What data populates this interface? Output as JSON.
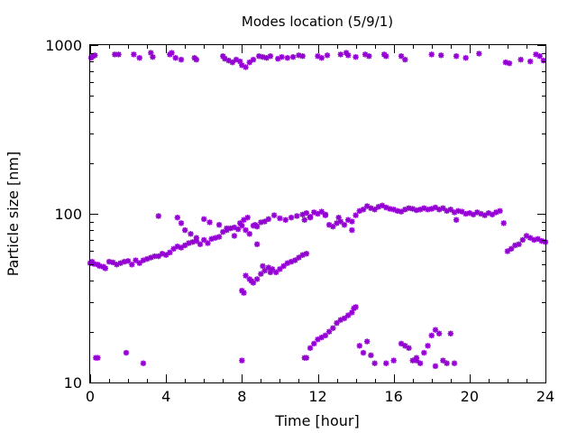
{
  "chart_data": {
    "type": "scatter",
    "title": "Modes location (5/9/1)",
    "xlabel": "Time [hour]",
    "ylabel": "Particle size [nm]",
    "xlim": [
      0,
      24
    ],
    "ylim": [
      10,
      1000
    ],
    "yscale": "log",
    "xticks": [
      0,
      4,
      8,
      12,
      16,
      20,
      24
    ],
    "xtick_labels": [
      "0",
      "4",
      "8",
      "12",
      "16",
      "20",
      "24"
    ],
    "xtick_minor_step": 1,
    "yticks": [
      10,
      100,
      1000
    ],
    "ytick_labels": [
      "10",
      "100",
      "1000"
    ],
    "grid": false,
    "legend": "none",
    "marker": "star",
    "color": "#9400d3",
    "series": [
      {
        "values": [
          [
            0.05,
            840
          ],
          [
            0.15,
            860
          ],
          [
            0.25,
            870
          ],
          [
            1.3,
            880
          ],
          [
            1.5,
            880
          ],
          [
            2.3,
            880
          ],
          [
            2.6,
            840
          ],
          [
            3.2,
            900
          ],
          [
            3.3,
            850
          ],
          [
            4.2,
            880
          ],
          [
            4.3,
            900
          ],
          [
            4.5,
            840
          ],
          [
            4.8,
            820
          ],
          [
            5.5,
            840
          ],
          [
            5.6,
            820
          ],
          [
            7.0,
            860
          ],
          [
            7.1,
            830
          ],
          [
            7.3,
            810
          ],
          [
            7.5,
            790
          ],
          [
            7.7,
            820
          ],
          [
            7.9,
            800
          ],
          [
            8.0,
            760
          ],
          [
            8.2,
            740
          ],
          [
            8.4,
            790
          ],
          [
            8.6,
            820
          ],
          [
            8.9,
            860
          ],
          [
            9.1,
            850
          ],
          [
            9.3,
            840
          ],
          [
            9.5,
            860
          ],
          [
            9.9,
            830
          ],
          [
            10.1,
            850
          ],
          [
            10.4,
            840
          ],
          [
            10.7,
            850
          ],
          [
            11.0,
            870
          ],
          [
            11.2,
            860
          ],
          [
            12.0,
            860
          ],
          [
            12.2,
            840
          ],
          [
            12.5,
            870
          ],
          [
            13.2,
            880
          ],
          [
            13.5,
            900
          ],
          [
            13.6,
            870
          ],
          [
            14.0,
            850
          ],
          [
            14.5,
            880
          ],
          [
            14.7,
            860
          ],
          [
            15.5,
            880
          ],
          [
            15.6,
            860
          ],
          [
            16.4,
            860
          ],
          [
            16.6,
            820
          ],
          [
            18.0,
            880
          ],
          [
            18.5,
            870
          ],
          [
            19.3,
            860
          ],
          [
            19.8,
            840
          ],
          [
            20.5,
            890
          ],
          [
            21.9,
            790
          ],
          [
            22.1,
            780
          ],
          [
            22.7,
            820
          ],
          [
            23.2,
            800
          ],
          [
            23.5,
            880
          ],
          [
            23.7,
            860
          ],
          [
            23.9,
            810
          ]
        ]
      },
      {
        "values": [
          [
            0.0,
            51
          ],
          [
            0.1,
            52
          ],
          [
            0.2,
            50.5
          ],
          [
            0.4,
            50
          ],
          [
            0.5,
            49
          ],
          [
            0.7,
            48.5
          ],
          [
            0.8,
            47.5
          ],
          [
            1.0,
            52
          ],
          [
            1.2,
            51.5
          ],
          [
            1.4,
            50
          ],
          [
            1.6,
            51
          ],
          [
            1.8,
            52
          ],
          [
            2.0,
            52.5
          ],
          [
            2.2,
            50
          ],
          [
            2.4,
            53
          ],
          [
            2.6,
            51
          ],
          [
            2.8,
            53
          ],
          [
            3.0,
            54
          ],
          [
            3.2,
            55
          ],
          [
            3.4,
            56
          ],
          [
            3.6,
            56
          ],
          [
            3.8,
            58
          ],
          [
            4.0,
            57
          ],
          [
            4.2,
            59
          ],
          [
            4.4,
            62
          ],
          [
            4.6,
            64
          ],
          [
            4.8,
            63
          ],
          [
            5.0,
            65
          ],
          [
            5.2,
            67
          ],
          [
            5.4,
            68
          ],
          [
            5.6,
            69
          ],
          [
            5.8,
            66
          ],
          [
            6.0,
            70
          ],
          [
            6.2,
            67
          ],
          [
            6.4,
            71
          ],
          [
            6.6,
            72
          ],
          [
            6.8,
            73
          ],
          [
            7.0,
            78
          ],
          [
            7.2,
            80
          ],
          [
            7.4,
            82
          ],
          [
            7.6,
            83
          ],
          [
            7.8,
            81
          ],
          [
            8.0,
            85
          ],
          [
            8.2,
            80
          ],
          [
            8.4,
            76
          ],
          [
            8.6,
            85
          ],
          [
            8.8,
            84
          ],
          [
            9.0,
            89
          ],
          [
            9.2,
            90
          ],
          [
            9.4,
            93
          ],
          [
            9.7,
            98
          ],
          [
            10.0,
            94
          ],
          [
            10.3,
            92
          ],
          [
            10.6,
            95
          ],
          [
            10.9,
            97
          ],
          [
            11.2,
            99
          ],
          [
            11.4,
            101
          ],
          [
            11.6,
            96
          ],
          [
            11.8,
            102
          ],
          [
            12.0,
            100
          ],
          [
            12.2,
            103
          ],
          [
            12.4,
            98
          ],
          [
            12.6,
            86
          ],
          [
            12.8,
            84
          ],
          [
            13.0,
            88
          ],
          [
            13.2,
            90
          ],
          [
            13.4,
            86
          ],
          [
            13.6,
            92
          ],
          [
            13.8,
            90
          ],
          [
            14.0,
            98
          ],
          [
            14.2,
            104
          ],
          [
            14.4,
            106
          ],
          [
            14.6,
            111
          ],
          [
            14.8,
            108
          ],
          [
            15.0,
            106
          ],
          [
            15.2,
            110
          ],
          [
            15.4,
            112
          ],
          [
            15.6,
            109
          ],
          [
            15.8,
            107
          ],
          [
            16.0,
            106
          ],
          [
            16.2,
            104
          ],
          [
            16.4,
            103
          ],
          [
            16.6,
            106
          ],
          [
            16.8,
            108
          ],
          [
            17.0,
            107
          ],
          [
            17.2,
            105
          ],
          [
            17.4,
            106
          ],
          [
            17.6,
            108
          ],
          [
            17.8,
            106
          ],
          [
            18.0,
            107
          ],
          [
            18.2,
            109
          ],
          [
            18.4,
            106
          ],
          [
            18.6,
            108
          ],
          [
            18.8,
            104
          ],
          [
            19.0,
            106
          ],
          [
            19.2,
            102
          ],
          [
            19.4,
            104
          ],
          [
            19.6,
            103
          ],
          [
            19.8,
            100
          ],
          [
            20.0,
            101
          ],
          [
            20.2,
            99
          ],
          [
            20.4,
            102
          ],
          [
            20.6,
            100
          ],
          [
            20.8,
            98
          ],
          [
            21.0,
            101
          ],
          [
            21.2,
            99
          ],
          [
            21.4,
            102
          ],
          [
            21.6,
            104
          ],
          [
            21.8,
            88
          ],
          [
            22.0,
            60
          ],
          [
            22.2,
            62
          ],
          [
            22.4,
            65
          ],
          [
            22.6,
            66
          ],
          [
            22.8,
            70
          ],
          [
            23.0,
            74
          ],
          [
            23.2,
            72
          ],
          [
            23.4,
            70
          ],
          [
            23.6,
            71
          ],
          [
            23.8,
            69
          ],
          [
            24.0,
            68
          ],
          [
            3.6,
            97
          ],
          [
            4.6,
            95
          ],
          [
            4.8,
            88
          ],
          [
            5.0,
            80
          ],
          [
            5.3,
            76
          ],
          [
            5.6,
            72
          ],
          [
            6.0,
            93
          ],
          [
            6.3,
            89
          ],
          [
            6.8,
            86
          ],
          [
            7.2,
            82
          ],
          [
            7.6,
            74
          ],
          [
            7.9,
            88
          ],
          [
            8.1,
            92
          ],
          [
            8.3,
            95
          ],
          [
            8.7,
            86
          ],
          [
            8.8,
            66
          ],
          [
            11.3,
            92
          ],
          [
            11.6,
            95
          ],
          [
            12.4,
            99
          ],
          [
            13.1,
            95
          ],
          [
            13.8,
            80
          ],
          [
            19.3,
            92
          ]
        ]
      },
      {
        "values": [
          [
            8.0,
            35
          ],
          [
            8.1,
            34
          ],
          [
            8.2,
            43
          ],
          [
            8.4,
            41
          ],
          [
            8.5,
            40
          ],
          [
            8.6,
            39
          ],
          [
            8.8,
            41
          ],
          [
            9.0,
            44
          ],
          [
            9.2,
            46
          ],
          [
            9.4,
            48
          ],
          [
            9.6,
            47
          ],
          [
            9.8,
            45
          ],
          [
            10.0,
            47
          ],
          [
            10.2,
            49
          ],
          [
            10.4,
            51
          ],
          [
            10.6,
            52
          ],
          [
            10.8,
            53
          ],
          [
            11.0,
            55
          ],
          [
            11.2,
            57
          ],
          [
            11.4,
            58
          ],
          [
            9.1,
            49
          ],
          [
            9.5,
            45
          ]
        ]
      },
      {
        "values": [
          [
            0.3,
            14
          ],
          [
            0.4,
            14
          ],
          [
            1.9,
            15
          ],
          [
            2.8,
            13
          ],
          [
            8.0,
            13.5
          ],
          [
            11.3,
            14
          ],
          [
            11.4,
            14
          ],
          [
            11.6,
            16
          ],
          [
            11.8,
            17
          ],
          [
            12.0,
            18
          ],
          [
            12.2,
            18.5
          ],
          [
            12.4,
            19
          ],
          [
            12.6,
            20
          ],
          [
            12.8,
            21
          ],
          [
            13.0,
            22.5
          ],
          [
            13.2,
            23.5
          ],
          [
            13.4,
            24
          ],
          [
            13.6,
            25
          ],
          [
            13.8,
            26
          ],
          [
            13.9,
            27.5
          ],
          [
            14.0,
            28
          ],
          [
            14.2,
            16.5
          ],
          [
            14.4,
            15
          ],
          [
            14.6,
            17.5
          ],
          [
            14.8,
            14.5
          ],
          [
            15.0,
            13
          ],
          [
            15.6,
            13
          ],
          [
            16.0,
            13.5
          ],
          [
            16.4,
            17
          ],
          [
            16.6,
            16.5
          ],
          [
            16.8,
            16
          ],
          [
            17.0,
            13.5
          ],
          [
            17.2,
            13.5
          ],
          [
            17.4,
            13
          ],
          [
            17.6,
            15
          ],
          [
            17.8,
            16.5
          ],
          [
            18.0,
            19
          ],
          [
            18.2,
            20.5
          ],
          [
            18.4,
            19.5
          ],
          [
            18.6,
            13.5
          ],
          [
            18.8,
            13
          ],
          [
            19.0,
            19.5
          ],
          [
            19.2,
            13
          ],
          [
            18.2,
            12.5
          ],
          [
            17.2,
            14
          ]
        ]
      }
    ]
  }
}
